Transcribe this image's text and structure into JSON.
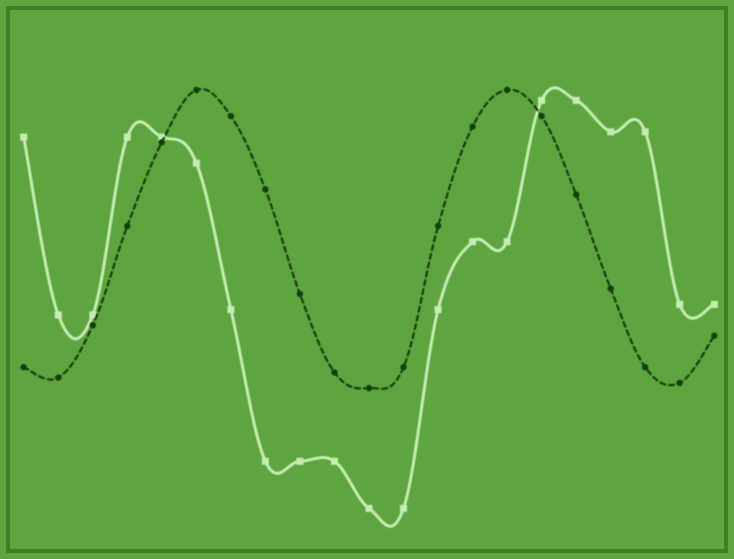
{
  "chart_data": {
    "type": "line",
    "grid": false,
    "legend": "none",
    "colors": {
      "background": "#5ea53f",
      "frame": "#3f7d27",
      "dark_series": "#173e0f",
      "light_series": "#c6ecb4"
    },
    "x": [
      0,
      1,
      2,
      3,
      4,
      5,
      6,
      7,
      8,
      9,
      10,
      11,
      12,
      13,
      14,
      15,
      16,
      17,
      18,
      19,
      20
    ],
    "xlim": [
      -0.05,
      20.05
    ],
    "ylim": [
      0,
      1
    ],
    "series": [
      {
        "style": "dashed",
        "values": [
          0.34,
          0.32,
          0.42,
          0.61,
          0.77,
          0.87,
          0.82,
          0.68,
          0.48,
          0.33,
          0.3,
          0.34,
          0.61,
          0.8,
          0.87,
          0.82,
          0.67,
          0.49,
          0.34,
          0.31,
          0.4
        ]
      },
      {
        "style": "solid",
        "values": [
          0.78,
          0.44,
          0.44,
          0.78,
          0.78,
          0.73,
          0.45,
          0.16,
          0.16,
          0.16,
          0.07,
          0.07,
          0.45,
          0.58,
          0.58,
          0.85,
          0.85,
          0.79,
          0.79,
          0.46,
          0.46
        ]
      }
    ]
  }
}
